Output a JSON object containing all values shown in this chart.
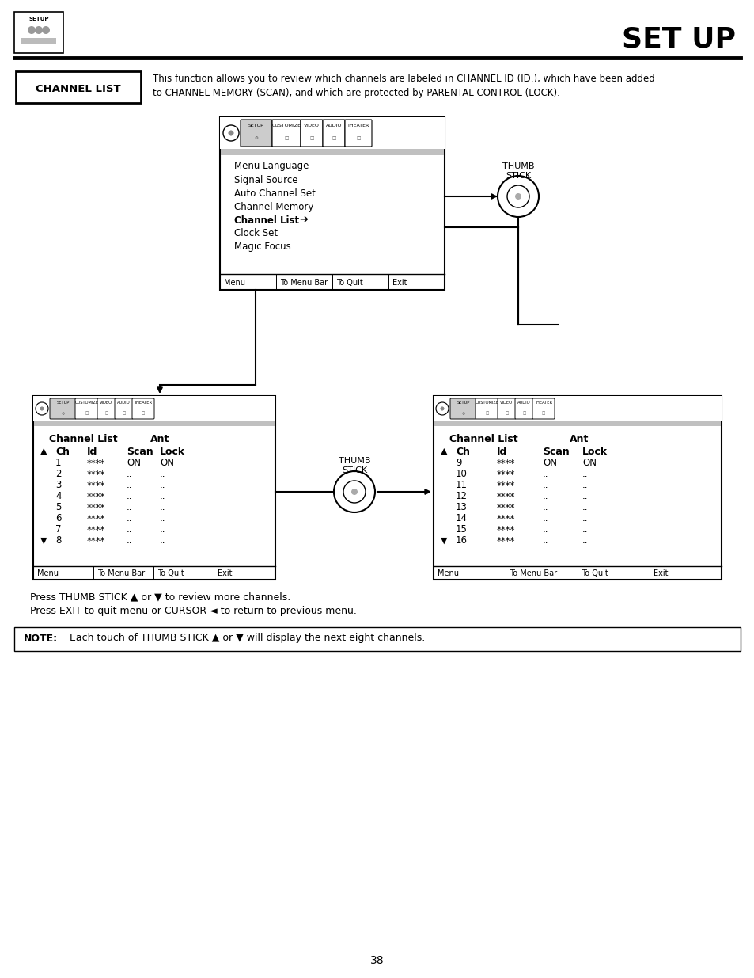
{
  "title": "SET UP",
  "page_number": "38",
  "channel_list_label": "CHANNEL LIST",
  "channel_list_desc_line1": "This function allows you to review which channels are labeled in CHANNEL ID (ID.), which have been added",
  "channel_list_desc_line2": "to CHANNEL MEMORY (SCAN), and which are protected by PARENTAL CONTROL (LOCK).",
  "menu_items": [
    "Menu Language",
    "Signal Source",
    "Auto Channel Set",
    "Channel Memory",
    "Channel List",
    "Clock Set",
    "Magic Focus"
  ],
  "bold_item": "Channel List",
  "menu_bottom": [
    "Menu",
    "To Menu Bar",
    "To Quit",
    "Exit"
  ],
  "tab_labels": [
    "SETUP",
    "CUSTOMIZE",
    "VIDEO",
    "AUDIO",
    "THEATER"
  ],
  "ch_left_rows": [
    [
      "1",
      "****",
      "ON",
      "ON"
    ],
    [
      "2",
      "****",
      "..",
      ".."
    ],
    [
      "3",
      "****",
      "..",
      ".."
    ],
    [
      "4",
      "****",
      "..",
      ".."
    ],
    [
      "5",
      "****",
      "..",
      ".."
    ],
    [
      "6",
      "****",
      "..",
      ".."
    ],
    [
      "7",
      "****",
      "..",
      ".."
    ],
    [
      "8",
      "****",
      "..",
      ".."
    ]
  ],
  "ch_right_rows": [
    [
      "9",
      "****",
      "ON",
      "ON"
    ],
    [
      "10",
      "****",
      "..",
      ".."
    ],
    [
      "11",
      "****",
      "..",
      ".."
    ],
    [
      "12",
      "****",
      "..",
      ".."
    ],
    [
      "13",
      "****",
      "..",
      ".."
    ],
    [
      "14",
      "****",
      "..",
      ".."
    ],
    [
      "15",
      "****",
      "..",
      ".."
    ],
    [
      "16",
      "****",
      "..",
      ".."
    ]
  ],
  "col_headers": [
    "Ch",
    "Id",
    "Scan",
    "Lock"
  ],
  "press_text1": "Press THUMB STICK ▲ or ▼ to review more channels.",
  "press_text2": "Press EXIT to quit menu or CURSOR ◄ to return to previous menu.",
  "note_label": "NOTE:",
  "note_text": "Each touch of THUMB STICK ▲ or ▼ will display the next eight channels.",
  "thumb_label": "THUMB\nSTICK"
}
